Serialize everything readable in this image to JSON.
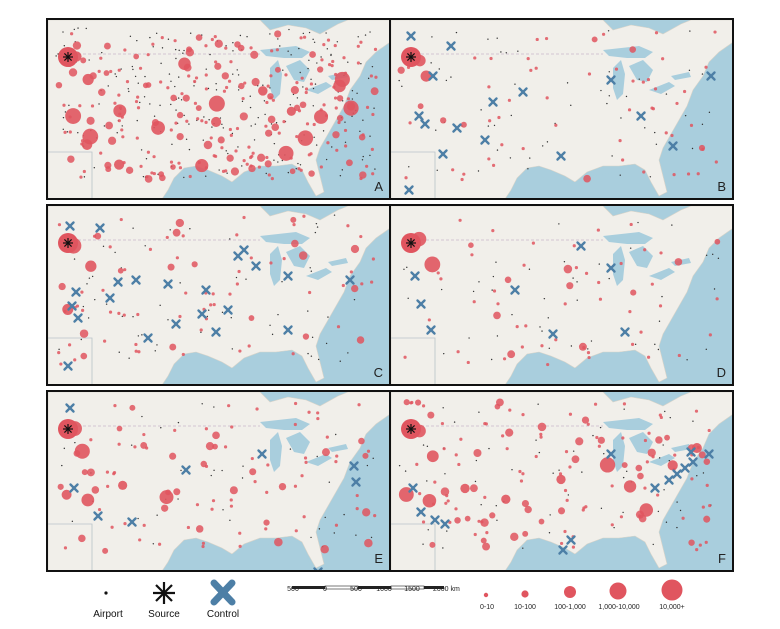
{
  "panels": [
    {
      "letter": "A",
      "control_count": 0
    },
    {
      "letter": "B",
      "control_count": 16
    },
    {
      "letter": "C",
      "control_count": 22
    },
    {
      "letter": "D",
      "control_count": 8
    },
    {
      "letter": "E",
      "control_count": 9
    },
    {
      "letter": "F",
      "control_count": 14
    }
  ],
  "legend": {
    "airport_label": "Airport",
    "source_label": "Source",
    "control_label": "Control",
    "scale_ticks": [
      "500",
      "0",
      "500",
      "1000",
      "1500",
      "2000 km"
    ],
    "size_classes": [
      "0-10",
      "10-100",
      "100-1,000",
      "1,000-10,000",
      "10,000+"
    ]
  },
  "colors": {
    "water": "#a9cedd",
    "land": "#f1efea",
    "bubble": "#e0555f",
    "control": "#4d7fa6",
    "source": "#111111"
  }
}
